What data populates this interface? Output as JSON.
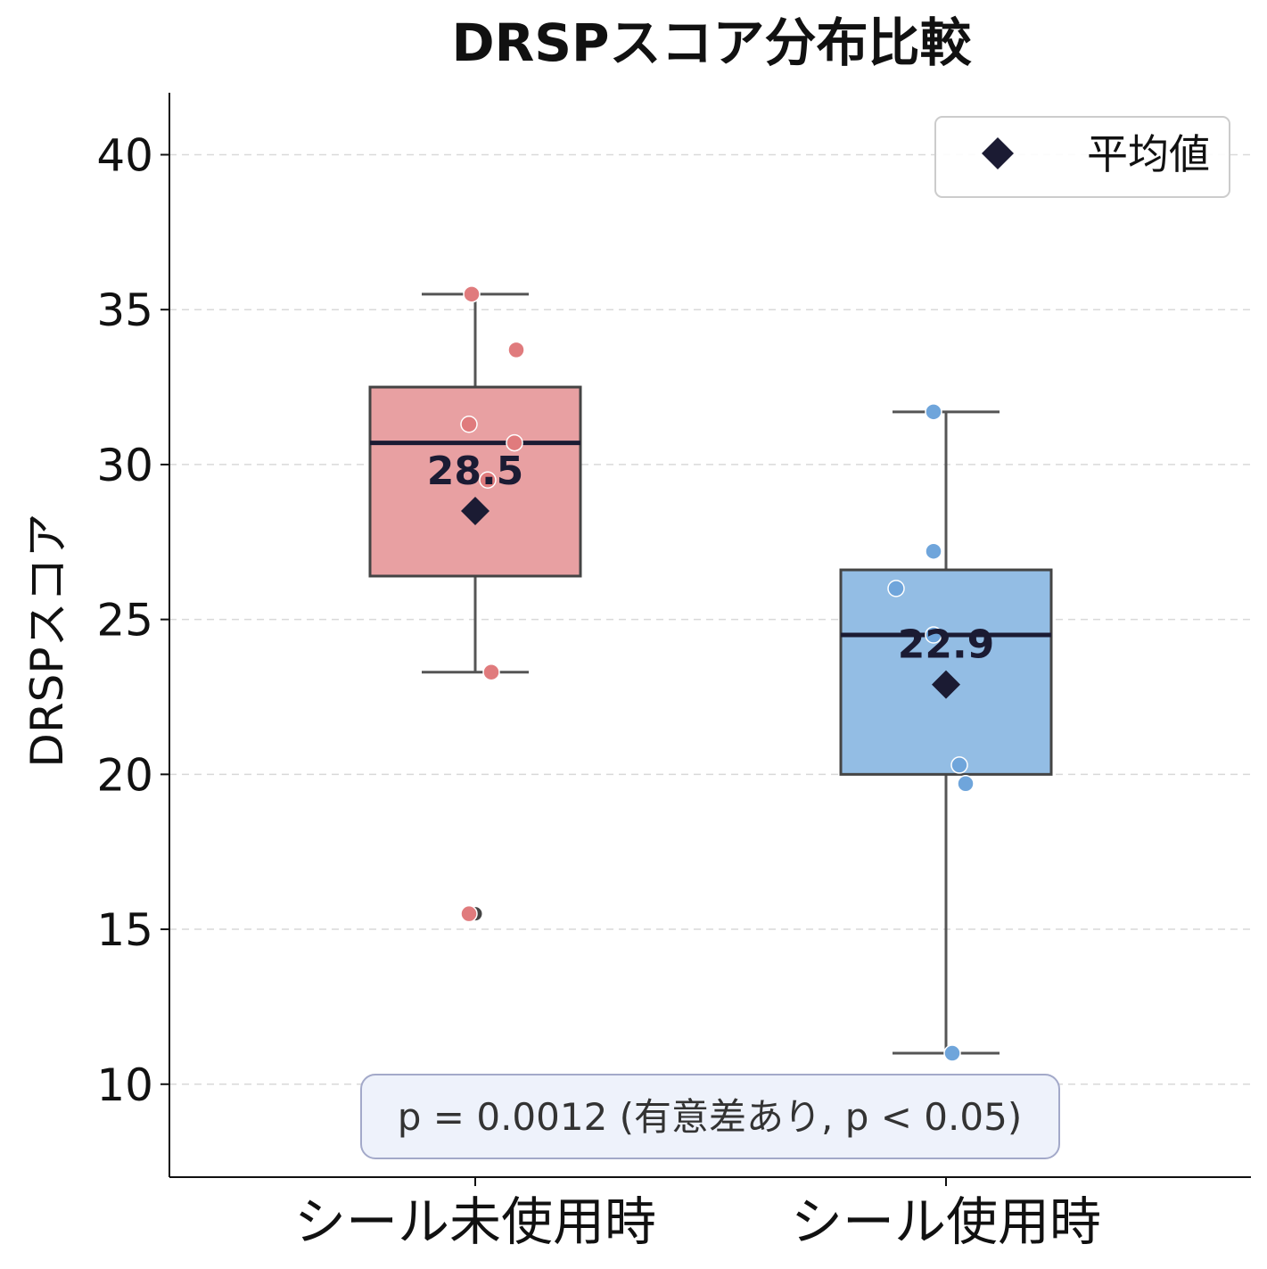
{
  "chart_data": {
    "type": "box",
    "title": "DRSPスコア分布比較",
    "ylabel": "DRSPスコア",
    "xlabel": "",
    "ylim": [
      7,
      42
    ],
    "yticks": [
      10,
      15,
      20,
      25,
      30,
      35,
      40
    ],
    "grid": "horizontal dashed",
    "legend": {
      "position": "top-right",
      "entries": [
        {
          "marker": "diamond",
          "label": "平均値",
          "color": "#1b1b33"
        }
      ]
    },
    "groups": [
      {
        "name": "シール未使用時",
        "color": "#e8a0a2",
        "point_color": "#e07b7d",
        "whisker_low": 23.3,
        "q1": 26.4,
        "median": 30.7,
        "q3": 32.5,
        "whisker_high": 35.5,
        "mean": 28.5,
        "mean_label": "28.5",
        "outliers": [
          15.5
        ],
        "points": [
          35.5,
          33.7,
          31.3,
          30.7,
          29.5,
          23.3,
          15.5
        ]
      },
      {
        "name": "シール使用時",
        "color": "#93bde4",
        "point_color": "#6fa5db",
        "whisker_low": 11.0,
        "q1": 20.0,
        "median": 24.5,
        "q3": 26.6,
        "whisker_high": 31.7,
        "mean": 22.9,
        "mean_label": "22.9",
        "outliers": [],
        "points": [
          31.7,
          27.2,
          26.0,
          24.5,
          20.3,
          19.7,
          11.0
        ]
      }
    ],
    "annotation": "p = 0.0012  (有意差あり, p < 0.05)"
  }
}
